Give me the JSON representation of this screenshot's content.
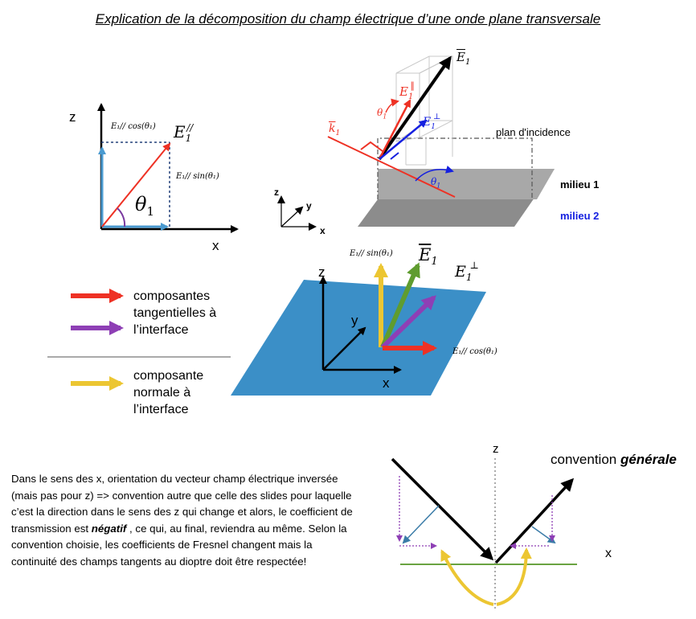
{
  "title": "Explication de la décomposition du champ électrique d’une onde plane transversale",
  "diagram1": {
    "z": "z",
    "x": "x",
    "e_par": "E",
    "e_par_sup": "//",
    "e_par_sub": "1",
    "e_par_cos": "E₁// cos(θ₁)",
    "e_par_sin": "E₁// sin(θ₁)",
    "theta": "θ",
    "theta_sub": "1"
  },
  "diagram2": {
    "e1": "E",
    "e1_sub": "1",
    "e_par": "E",
    "e_par_sub": "1",
    "e_perp": "E",
    "e_perp_sub": "1",
    "k1": "k",
    "k1_sub": "1",
    "theta_a": "θ",
    "theta_a_sub": "1",
    "theta_b": "θ",
    "theta_b_sub": "1",
    "plan": "plan d'incidence",
    "milieu1": "milieu 1",
    "milieu2": "milieu 2",
    "axes": {
      "z": "z",
      "y": "y",
      "x": "x"
    }
  },
  "legend": {
    "tangent": [
      "composantes",
      "tangentielles à",
      "l’interface"
    ],
    "normal": [
      "composante",
      "normale à",
      "l’interface"
    ]
  },
  "diagram3": {
    "z": "z",
    "y": "y",
    "x": "x",
    "e1": "E",
    "e1_sub": "1",
    "e_perp": "E",
    "e_perp_sub": "1",
    "sin_label": "E₁// sin(θ₁)",
    "cos_label": "E₁// cos(θ₁)"
  },
  "paragraph": {
    "text_before": "Dans le sens des x, orientation du vecteur champ électrique inversée (mais pas pour z) => convention autre que celle des slides pour laquelle c’est la direction dans le sens des z qui change et alors, le coefficient de transmission est ",
    "bold": "négatif ",
    "text_after": ", ce qui, au final, reviendra au même. Selon la convention choisie,  les coefficients de Fresnel changent mais la continuité des champs tangents au dioptre doit être respectée!"
  },
  "diagram4": {
    "z": "z",
    "x": "x",
    "convention": "convention ",
    "convention_bold": "générale"
  },
  "colors": {
    "red": "#ee3124",
    "purple": "#8e3fb5",
    "yellow": "#ecc632",
    "green": "#5f9c2f",
    "blue_plane": "#3b8fc7",
    "blue_vec": "#1520e0",
    "light_blue": "#4a9ad0",
    "steel": "#3b7ca8"
  }
}
